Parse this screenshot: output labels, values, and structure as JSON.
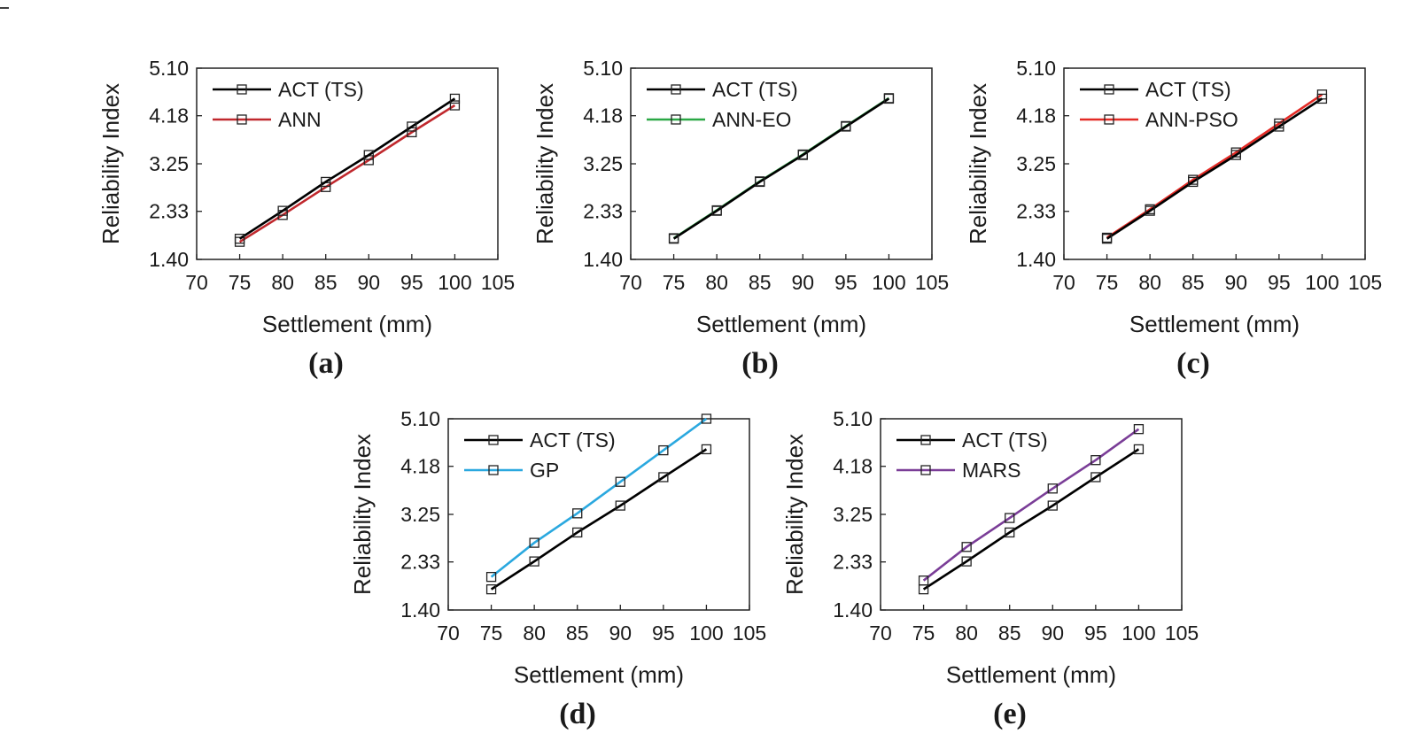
{
  "chart_data": [
    {
      "type": "line",
      "panel_label": "(a)",
      "xlabel": "Settlement (mm)",
      "ylabel": "Reliability Index",
      "xlim": [
        70,
        105
      ],
      "ylim": [
        1.4,
        5.1
      ],
      "xticks": [
        "70",
        "75",
        "80",
        "85",
        "90",
        "95",
        "100",
        "105"
      ],
      "yticks": [
        "1.40",
        "2.33",
        "3.25",
        "4.18",
        "5.10"
      ],
      "x": [
        75,
        80,
        85,
        90,
        95,
        100
      ],
      "series": [
        {
          "name": "ACT (TS)",
          "color": "#000000",
          "values": [
            1.8,
            2.34,
            2.9,
            3.42,
            3.97,
            4.51
          ]
        },
        {
          "name": "ANN",
          "color": "#c0282d",
          "values": [
            1.74,
            2.26,
            2.8,
            3.32,
            3.86,
            4.38
          ]
        }
      ]
    },
    {
      "type": "line",
      "panel_label": "(b)",
      "xlabel": "Settlement (mm)",
      "ylabel": "Reliability Index",
      "xlim": [
        70,
        105
      ],
      "ylim": [
        1.4,
        5.1
      ],
      "xticks": [
        "70",
        "75",
        "80",
        "85",
        "90",
        "95",
        "100",
        "105"
      ],
      "yticks": [
        "1.40",
        "2.33",
        "3.25",
        "4.18",
        "5.10"
      ],
      "x": [
        75,
        80,
        85,
        90,
        95,
        100
      ],
      "series": [
        {
          "name": "ACT (TS)",
          "color": "#000000",
          "values": [
            1.8,
            2.34,
            2.9,
            3.42,
            3.97,
            4.51
          ]
        },
        {
          "name": "ANN-EO",
          "color": "#2aa845",
          "values": [
            1.81,
            2.35,
            2.91,
            3.43,
            3.98,
            4.52
          ]
        }
      ]
    },
    {
      "type": "line",
      "panel_label": "(c)",
      "xlabel": "Settlement (mm)",
      "ylabel": "Reliability Index",
      "xlim": [
        70,
        105
      ],
      "ylim": [
        1.4,
        5.1
      ],
      "xticks": [
        "70",
        "75",
        "80",
        "85",
        "90",
        "95",
        "100",
        "105"
      ],
      "yticks": [
        "1.40",
        "2.33",
        "3.25",
        "4.18",
        "5.10"
      ],
      "x": [
        75,
        80,
        85,
        90,
        95,
        100
      ],
      "series": [
        {
          "name": "ACT (TS)",
          "color": "#000000",
          "values": [
            1.8,
            2.34,
            2.9,
            3.42,
            3.97,
            4.51
          ]
        },
        {
          "name": "ANN-PSO",
          "color": "#e32b26",
          "values": [
            1.82,
            2.37,
            2.94,
            3.47,
            4.03,
            4.59
          ]
        }
      ]
    },
    {
      "type": "line",
      "panel_label": "(d)",
      "xlabel": "Settlement (mm)",
      "ylabel": "Reliability Index",
      "xlim": [
        70,
        105
      ],
      "ylim": [
        1.4,
        5.1
      ],
      "xticks": [
        "70",
        "75",
        "80",
        "85",
        "90",
        "95",
        "100",
        "105"
      ],
      "yticks": [
        "1.40",
        "2.33",
        "3.25",
        "4.18",
        "5.10"
      ],
      "x": [
        75,
        80,
        85,
        90,
        95,
        100
      ],
      "series": [
        {
          "name": "ACT (TS)",
          "color": "#000000",
          "values": [
            1.8,
            2.34,
            2.9,
            3.42,
            3.97,
            4.51
          ]
        },
        {
          "name": "GP",
          "color": "#2aa8df",
          "values": [
            2.04,
            2.7,
            3.27,
            3.88,
            4.49,
            5.1
          ]
        }
      ]
    },
    {
      "type": "line",
      "panel_label": "(e)",
      "xlabel": "Settlement (mm)",
      "ylabel": "Reliability Index",
      "xlim": [
        70,
        105
      ],
      "ylim": [
        1.4,
        5.1
      ],
      "xticks": [
        "70",
        "75",
        "80",
        "85",
        "90",
        "95",
        "100",
        "105"
      ],
      "yticks": [
        "1.40",
        "2.33",
        "3.25",
        "4.18",
        "5.10"
      ],
      "x": [
        75,
        80,
        85,
        90,
        95,
        100
      ],
      "series": [
        {
          "name": "ACT (TS)",
          "color": "#000000",
          "values": [
            1.8,
            2.34,
            2.9,
            3.42,
            3.97,
            4.51
          ]
        },
        {
          "name": "MARS",
          "color": "#7a3d97",
          "values": [
            1.97,
            2.62,
            3.18,
            3.75,
            4.3,
            4.9
          ]
        }
      ]
    }
  ]
}
